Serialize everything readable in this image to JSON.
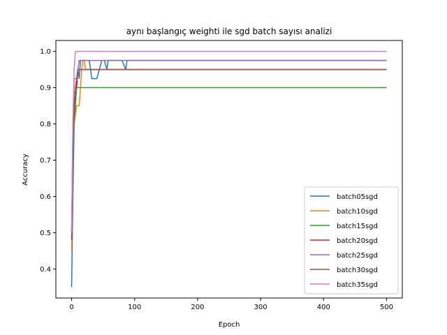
{
  "chart_data": {
    "type": "line",
    "title": "aynı başlangıç weighti ile sgd batch sayısı analizi",
    "xlabel": "Epoch",
    "ylabel": "Accuracy",
    "xlim": [
      -25,
      525
    ],
    "ylim": [
      0.32,
      1.03
    ],
    "xticks": [
      0,
      100,
      200,
      300,
      400,
      500
    ],
    "yticks": [
      0.4,
      0.5,
      0.6,
      0.7,
      0.8,
      0.9,
      1.0
    ],
    "xtick_labels": [
      "0",
      "100",
      "200",
      "300",
      "400",
      "500"
    ],
    "ytick_labels": [
      "0.4",
      "0.5",
      "0.6",
      "0.7",
      "0.8",
      "0.9",
      "1.0"
    ],
    "grid": false,
    "legend_position": "lower-right",
    "series": [
      {
        "name": "batch05sgd",
        "color": "#1f77b4",
        "x": [
          0,
          2,
          4,
          6,
          8,
          10,
          12,
          14,
          16,
          18,
          20,
          24,
          28,
          32,
          36,
          40,
          44,
          48,
          52,
          56,
          58,
          62,
          70,
          80,
          86,
          88,
          92,
          100,
          500
        ],
        "y": [
          0.35,
          0.6,
          0.8,
          0.9,
          0.92,
          0.95,
          0.925,
          0.975,
          0.975,
          0.975,
          0.975,
          0.975,
          0.975,
          0.925,
          0.925,
          0.925,
          0.95,
          0.975,
          0.975,
          0.95,
          0.975,
          0.975,
          0.975,
          0.975,
          0.95,
          0.975,
          0.975,
          0.975,
          0.975
        ]
      },
      {
        "name": "batch10sgd",
        "color": "#ff7f0e",
        "x": [
          0,
          2,
          4,
          6,
          8,
          10,
          12,
          14,
          16,
          18,
          20,
          22,
          24,
          26,
          500
        ],
        "y": [
          0.45,
          0.75,
          0.8,
          0.825,
          0.85,
          0.85,
          0.85,
          0.9,
          0.95,
          0.975,
          0.975,
          0.95,
          0.95,
          0.95,
          0.95
        ]
      },
      {
        "name": "batch15sgd",
        "color": "#2ca02c",
        "x": [
          0,
          2,
          4,
          6,
          8,
          10,
          500
        ],
        "y": [
          0.5,
          0.75,
          0.8,
          0.85,
          0.9,
          0.9,
          0.9
        ]
      },
      {
        "name": "batch20sgd",
        "color": "#d62728",
        "x": [
          0,
          2,
          4,
          6,
          8,
          10,
          500
        ],
        "y": [
          0.5,
          0.75,
          0.85,
          0.9,
          0.9,
          0.95,
          0.95
        ]
      },
      {
        "name": "batch25sgd",
        "color": "#9467bd",
        "x": [
          0,
          2,
          4,
          6,
          8,
          10,
          12,
          14,
          500
        ],
        "y": [
          0.5,
          0.8,
          0.925,
          0.925,
          0.925,
          0.95,
          0.975,
          0.975,
          0.975
        ]
      },
      {
        "name": "batch30sgd",
        "color": "#8c564b",
        "x": [
          0,
          2,
          4,
          6,
          8,
          10,
          500
        ],
        "y": [
          0.48,
          0.75,
          0.85,
          0.9,
          0.925,
          0.95,
          0.95
        ]
      },
      {
        "name": "batch35sgd",
        "color": "#e377c2",
        "x": [
          0,
          2,
          4,
          6,
          500
        ],
        "y": [
          0.5,
          0.8,
          0.95,
          1.0,
          1.0
        ]
      }
    ]
  }
}
